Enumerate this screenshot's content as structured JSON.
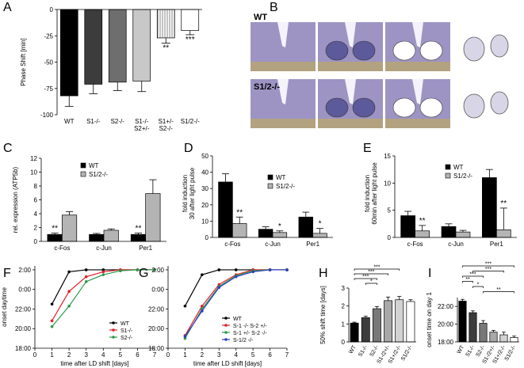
{
  "chart_data": [
    {
      "type": "bar",
      "panel": "A",
      "ylabel": "Phase Shift [min]",
      "categories": [
        "WT",
        "S1-/-",
        "S2-/-",
        "S1-/-\nS2+/-",
        "S1+/-\nS2-/-",
        "S1/2-/-"
      ],
      "values": [
        -82,
        -71,
        -69,
        -68,
        -27,
        -20
      ],
      "errors": [
        10,
        9,
        8,
        10,
        5,
        4
      ],
      "colors": [
        "#000000",
        "#3c3c3c",
        "#6e6e6e",
        "#c8c8c8",
        "#ffffff",
        "#ffffff"
      ],
      "hatched": [
        false,
        false,
        false,
        false,
        true,
        false
      ],
      "annotations": [
        null,
        null,
        null,
        null,
        "**",
        "***"
      ],
      "ylim": [
        -100,
        0
      ],
      "yticks": [
        0,
        -25,
        -50,
        -75,
        -100
      ]
    },
    {
      "type": "image",
      "panel": "B",
      "row_labels": [
        "WT",
        "S1/2-/-"
      ]
    },
    {
      "type": "bar",
      "panel": "C",
      "ylabel": "rel. expression (ATP5b)",
      "categories": [
        "c-Fos",
        "c-Jun",
        "Per1"
      ],
      "series": [
        {
          "name": "WT",
          "color": "#000000",
          "values": [
            1.0,
            1.0,
            1.0
          ],
          "errors": [
            0.2,
            0.15,
            0.2
          ],
          "annotations": [
            "**",
            null,
            "**"
          ]
        },
        {
          "name": "S1/2-/-",
          "color": "#b4b4b4",
          "values": [
            3.8,
            1.6,
            6.9
          ],
          "errors": [
            0.5,
            0.2,
            2.0
          ],
          "annotations": [
            null,
            null,
            null
          ]
        }
      ],
      "ylim": [
        0,
        12
      ],
      "yticks": [
        0,
        2,
        4,
        6,
        8,
        10,
        12
      ]
    },
    {
      "type": "bar",
      "panel": "D",
      "ylabel": "fold  induction\n30 after light pulse",
      "categories": [
        "c-Fos",
        "c-Jun",
        "Per1"
      ],
      "series": [
        {
          "name": "WT",
          "color": "#000000",
          "values": [
            34,
            5,
            12.5
          ],
          "errors": [
            5,
            1.5,
            3
          ],
          "annotations": [
            null,
            null,
            null
          ]
        },
        {
          "name": "S1/2-/-",
          "color": "#b4b4b4",
          "values": [
            8.5,
            3,
            2.5
          ],
          "errors": [
            4,
            1,
            3
          ],
          "annotations": [
            "**",
            "*",
            "*"
          ]
        }
      ],
      "ylim": [
        0,
        50
      ],
      "yticks": [
        0,
        10,
        20,
        30,
        40,
        50
      ]
    },
    {
      "type": "bar",
      "panel": "E",
      "ylabel": "fold  induction\n60min after light pulse",
      "categories": [
        "c-Fos",
        "c-Jun",
        "Per1"
      ],
      "series": [
        {
          "name": "WT",
          "color": "#000000",
          "values": [
            4,
            2,
            11
          ],
          "errors": [
            0.8,
            0.5,
            1.5
          ],
          "annotations": [
            null,
            null,
            null
          ]
        },
        {
          "name": "S1/2-/-",
          "color": "#b4b4b4",
          "values": [
            1.2,
            1.0,
            1.4
          ],
          "errors": [
            1,
            0.3,
            4
          ],
          "annotations": [
            "**",
            null,
            "**"
          ]
        }
      ],
      "ylim": [
        0,
        15
      ],
      "yticks": [
        0,
        5,
        10,
        15
      ]
    },
    {
      "type": "line",
      "panel": "F",
      "xlabel": "time after LD shift [days]",
      "ylabel": "onset daytime",
      "x": [
        1,
        2,
        3,
        4,
        5,
        6,
        7
      ],
      "series": [
        {
          "name": "WT",
          "color": "#000000",
          "values": [
            22.5,
            25.8,
            26,
            26,
            26,
            26,
            26
          ]
        },
        {
          "name": "S1-/-",
          "color": "#e0202a",
          "values": [
            20.8,
            23.8,
            25.3,
            25.8,
            26,
            26,
            26
          ]
        },
        {
          "name": "S2-/-",
          "color": "#2a9a4a",
          "values": [
            20.2,
            22.3,
            24.8,
            25.5,
            25.9,
            26,
            26
          ]
        }
      ],
      "xlim": [
        0,
        7
      ],
      "xticks": [
        0,
        1,
        2,
        3,
        4,
        5,
        6,
        7
      ],
      "ylim": [
        18,
        26.4
      ],
      "yticks": [
        {
          "value": 18,
          "label": "18:00"
        },
        {
          "value": 20,
          "label": "20:00"
        },
        {
          "value": 22,
          "label": "22:00"
        },
        {
          "value": 24,
          "label": "0:00"
        },
        {
          "value": 26,
          "label": "2:00"
        }
      ]
    },
    {
      "type": "line",
      "panel": "G",
      "xlabel": "time after LD shift [days]",
      "x": [
        1,
        2,
        3,
        4,
        5,
        6,
        7
      ],
      "series": [
        {
          "name": "WT",
          "color": "#000000",
          "values": [
            22.3,
            25.5,
            26,
            26,
            26,
            26,
            26
          ]
        },
        {
          "name": "S-1 -/- S-2 +/-",
          "color": "#e0202a",
          "values": [
            19.3,
            22.3,
            24.5,
            25.5,
            26,
            26,
            26
          ]
        },
        {
          "name": "S-1 +/- S-2 -/-",
          "color": "#2a9a4a",
          "values": [
            19.0,
            22.0,
            24.3,
            25.4,
            25.9,
            26,
            26
          ]
        },
        {
          "name": "S-1/2 -/-",
          "color": "#2a40c0",
          "values": [
            19.2,
            21.8,
            24.2,
            25.3,
            25.8,
            26,
            26
          ]
        }
      ],
      "xlim": [
        0,
        7
      ],
      "xticks": [
        0,
        1,
        2,
        3,
        4,
        5,
        6,
        7
      ],
      "ylim": [
        18,
        26.4
      ],
      "yticks": [
        {
          "value": 18,
          "label": "18:00"
        },
        {
          "value": 20,
          "label": "20:00"
        },
        {
          "value": 22,
          "label": "22:00"
        },
        {
          "value": 24,
          "label": "0:00"
        },
        {
          "value": 26,
          "label": "2:00"
        }
      ]
    },
    {
      "type": "bar",
      "panel": "H",
      "ylabel": "50% shift time [days]",
      "categories": [
        "WT",
        "S1-/-",
        "S2-/-",
        "S1-/2+/-",
        "S1+/2-/-",
        "S1/2-/-"
      ],
      "values": [
        1.05,
        1.35,
        1.85,
        2.3,
        2.35,
        2.25
      ],
      "errors": [
        0.05,
        0.08,
        0.12,
        0.2,
        0.18,
        0.1
      ],
      "colors": [
        "#000000",
        "#3c3c3c",
        "#787878",
        "#a8a8a8",
        "#d2d2d2",
        "#ffffff"
      ],
      "ylim": [
        0,
        3
      ],
      "yticks": [
        0,
        1,
        2,
        3
      ],
      "brackets": [
        {
          "pair": [
            "WT",
            "S1+/2-/-"
          ],
          "label": "***"
        },
        {
          "pair": [
            "WT",
            "S1-/2+/-"
          ],
          "label": "***"
        },
        {
          "pair": [
            "WT",
            "S2-/-"
          ],
          "label": "***"
        },
        {
          "pair": [
            "S1-/-",
            "S2-/-"
          ],
          "label": "*"
        }
      ]
    },
    {
      "type": "bar",
      "panel": "I",
      "ylabel": "onset time on day 1",
      "categories": [
        "WT",
        "S1-/-",
        "S2-/-",
        "S1-/2+/-",
        "S1+/2-/-",
        "S1/2-/-"
      ],
      "values": [
        22.6,
        21.3,
        20.1,
        19.1,
        18.8,
        18.5
      ],
      "errors": [
        0.2,
        0.2,
        0.3,
        0.2,
        0.3,
        0.15
      ],
      "colors": [
        "#000000",
        "#3c3c3c",
        "#787878",
        "#a8a8a8",
        "#d2d2d2",
        "#ffffff"
      ],
      "ylim": [
        18,
        23
      ],
      "yticks": [
        {
          "value": 18,
          "label": "18:00"
        },
        {
          "value": 20,
          "label": "20:00"
        },
        {
          "value": 22,
          "label": "22:00"
        }
      ],
      "brackets": [
        {
          "pair": [
            "WT",
            "S1/2-/-"
          ],
          "label": "***"
        },
        {
          "pair": [
            "S1-/-",
            "S1+/2-/-"
          ],
          "label": "***"
        },
        {
          "pair": [
            "WT",
            "S2-/-"
          ],
          "label": "***"
        },
        {
          "pair": [
            "WT",
            "S1-/-"
          ],
          "label": "**"
        },
        {
          "pair": [
            "S1-/-",
            "S2-/-"
          ],
          "label": "*"
        },
        {
          "pair": [
            "S2-/-",
            "S1/2-/-"
          ],
          "label": "**"
        }
      ]
    }
  ]
}
